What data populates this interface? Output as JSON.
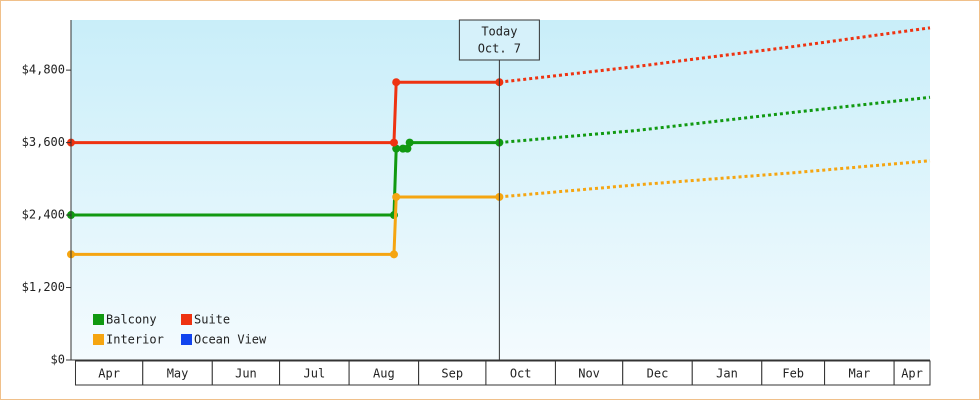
{
  "chart_data": {
    "type": "step-line",
    "xlim": [
      -2,
      381
    ],
    "xticks": [
      {
        "value": 0,
        "label": "Apr"
      },
      {
        "value": 30,
        "label": "May"
      },
      {
        "value": 61,
        "label": "Jun"
      },
      {
        "value": 91,
        "label": "Jul"
      },
      {
        "value": 122,
        "label": "Aug"
      },
      {
        "value": 153,
        "label": "Sep"
      },
      {
        "value": 183,
        "label": "Oct"
      },
      {
        "value": 214,
        "label": "Nov"
      },
      {
        "value": 244,
        "label": "Dec"
      },
      {
        "value": 275,
        "label": "Jan"
      },
      {
        "value": 306,
        "label": "Feb"
      },
      {
        "value": 334,
        "label": "Mar"
      },
      {
        "value": 365,
        "label": "Apr"
      }
    ],
    "ylim": [
      0,
      5630
    ],
    "yticks": [
      {
        "value": 0,
        "label": "$0"
      },
      {
        "value": 1200,
        "label": "$1,200"
      },
      {
        "value": 2400,
        "label": "$2,400"
      },
      {
        "value": 3600,
        "label": "$3,600"
      },
      {
        "value": 4800,
        "label": "$4,800"
      }
    ],
    "today": {
      "x": 189,
      "label": "Today",
      "date": "Oct. 7"
    },
    "series": [
      {
        "name": "Balcony",
        "color": "#119911",
        "x": [
          -2,
          142,
          143,
          146,
          148,
          149,
          189
        ],
        "values": [
          2400,
          2400,
          3500,
          3500,
          3500,
          3600,
          3600
        ],
        "forecast_x": [
          189,
          250,
          320,
          381
        ],
        "forecast_values": [
          3600,
          3800,
          4100,
          4350
        ]
      },
      {
        "name": "Suite",
        "color": "#ee3311",
        "x": [
          -2,
          142,
          143,
          189
        ],
        "values": [
          3600,
          3600,
          4600,
          4600
        ],
        "forecast_x": [
          189,
          250,
          320,
          381
        ],
        "forecast_values": [
          4600,
          4860,
          5190,
          5500
        ]
      },
      {
        "name": "Interior",
        "color": "#f5a511",
        "x": [
          -2,
          142,
          143,
          189
        ],
        "values": [
          1750,
          1750,
          2700,
          2700
        ],
        "forecast_x": [
          189,
          250,
          320,
          381
        ],
        "forecast_values": [
          2700,
          2900,
          3100,
          3300
        ]
      },
      {
        "name": "Ocean View",
        "color": "#1144ee",
        "x": [],
        "values": [],
        "forecast_x": [],
        "forecast_values": []
      }
    ]
  }
}
